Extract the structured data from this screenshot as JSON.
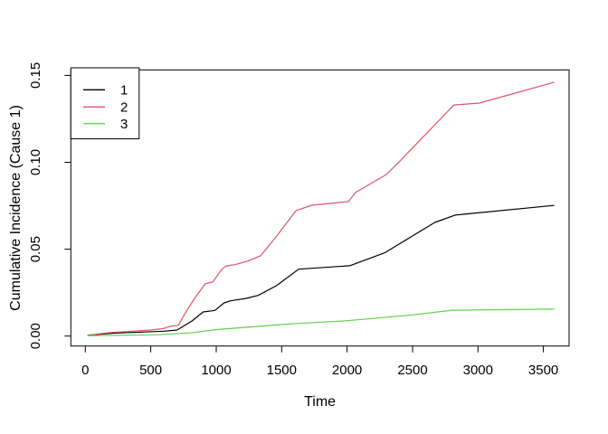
{
  "figure": {
    "background": "#ffffff",
    "border_color": "#000000"
  },
  "chart_data": {
    "type": "line",
    "title": "",
    "xlabel": "Time",
    "ylabel": "Cumulative Incidence (Cause 1)",
    "xlim": [
      0,
      3580
    ],
    "ylim": [
      0,
      0.15
    ],
    "grid": false,
    "legend_position": "top-left",
    "x_ticks": [
      0,
      500,
      1000,
      1500,
      2000,
      2500,
      3000,
      3500
    ],
    "x_tick_labels": [
      "0",
      "500",
      "1000",
      "1500",
      "2000",
      "2500",
      "3000",
      "3500"
    ],
    "y_ticks": [
      0,
      0.05,
      0.1,
      0.15
    ],
    "y_tick_labels": [
      "0.00",
      "0.05",
      "0.10",
      "0.15"
    ],
    "series": [
      {
        "name": "1",
        "color": "#000000",
        "points": [
          [
            20,
            0.0005
          ],
          [
            200,
            0.0016
          ],
          [
            430,
            0.0023
          ],
          [
            600,
            0.0028
          ],
          [
            700,
            0.0035
          ],
          [
            730,
            0.0048
          ],
          [
            815,
            0.0087
          ],
          [
            900,
            0.0139
          ],
          [
            990,
            0.0148
          ],
          [
            1060,
            0.0191
          ],
          [
            1110,
            0.0203
          ],
          [
            1230,
            0.0217
          ],
          [
            1320,
            0.0234
          ],
          [
            1460,
            0.029
          ],
          [
            1630,
            0.0385
          ],
          [
            2020,
            0.0405
          ],
          [
            2290,
            0.048
          ],
          [
            2670,
            0.0654
          ],
          [
            2825,
            0.0696
          ],
          [
            3580,
            0.0752
          ]
        ]
      },
      {
        "name": "2",
        "color": "#DF536B",
        "points": [
          [
            20,
            0.0005
          ],
          [
            200,
            0.0021
          ],
          [
            320,
            0.0026
          ],
          [
            500,
            0.0035
          ],
          [
            595,
            0.0043
          ],
          [
            630,
            0.0052
          ],
          [
            660,
            0.0057
          ],
          [
            710,
            0.0062
          ],
          [
            765,
            0.0135
          ],
          [
            835,
            0.0217
          ],
          [
            915,
            0.03
          ],
          [
            975,
            0.0312
          ],
          [
            1040,
            0.0382
          ],
          [
            1075,
            0.0404
          ],
          [
            1145,
            0.0411
          ],
          [
            1250,
            0.0434
          ],
          [
            1340,
            0.0463
          ],
          [
            1456,
            0.0569
          ],
          [
            1610,
            0.0722
          ],
          [
            1730,
            0.0753
          ],
          [
            2010,
            0.0774
          ],
          [
            2065,
            0.0826
          ],
          [
            2300,
            0.093
          ],
          [
            2390,
            0.0997
          ],
          [
            2816,
            0.133
          ],
          [
            3010,
            0.1341
          ],
          [
            3580,
            0.146
          ]
        ]
      },
      {
        "name": "3",
        "color": "#61D04F",
        "points": [
          [
            20,
            0.0002
          ],
          [
            550,
            0.0008
          ],
          [
            800,
            0.0018
          ],
          [
            1010,
            0.0038
          ],
          [
            1460,
            0.0064
          ],
          [
            1630,
            0.0073
          ],
          [
            1990,
            0.0088
          ],
          [
            2500,
            0.0122
          ],
          [
            2800,
            0.0149
          ],
          [
            3580,
            0.0155
          ]
        ]
      }
    ]
  }
}
